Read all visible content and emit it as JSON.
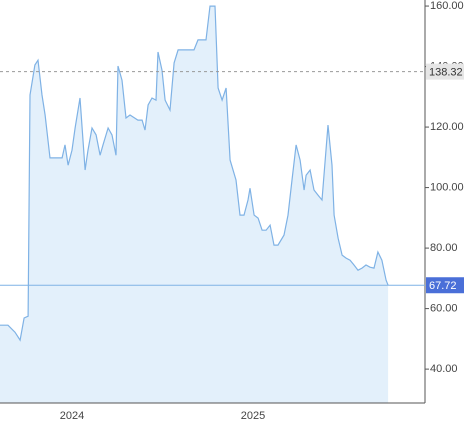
{
  "chart_data": {
    "type": "area",
    "x": [
      2023.602,
      2023.646,
      2023.685,
      2023.713,
      2023.735,
      2023.757,
      2023.768,
      2023.795,
      2023.812,
      2023.834,
      2023.851,
      2023.878,
      2023.945,
      2023.961,
      2023.978,
      2024.0,
      2024.017,
      2024.044,
      2024.072,
      2024.088,
      2024.11,
      2024.133,
      2024.155,
      2024.171,
      2024.199,
      2024.221,
      2024.243,
      2024.254,
      2024.276,
      2024.298,
      2024.32,
      2024.364,
      2024.387,
      2024.403,
      2024.42,
      2024.442,
      2024.464,
      2024.475,
      2024.497,
      2024.514,
      2024.541,
      2024.564,
      2024.586,
      2024.674,
      2024.696,
      2024.74,
      2024.762,
      2024.79,
      2024.807,
      2024.829,
      2024.851,
      2024.873,
      2024.906,
      2024.928,
      2024.95,
      2024.972,
      2024.983,
      2025.006,
      2025.028,
      2025.05,
      2025.072,
      2025.094,
      2025.116,
      2025.138,
      2025.171,
      2025.193,
      2025.215,
      2025.238,
      2025.26,
      2025.282,
      2025.293,
      2025.315,
      2025.337,
      2025.359,
      2025.381,
      2025.414,
      2025.436,
      2025.448,
      2025.47,
      2025.492,
      2025.514,
      2025.536,
      2025.558,
      2025.58,
      2025.602,
      2025.624,
      2025.646,
      2025.668,
      2025.69,
      2025.712,
      2025.735,
      2025.746
    ],
    "series": [
      {
        "color": "#7fb2e5",
        "fill": "#e3f0fb",
        "values": [
          54.5,
          54.5,
          52.2,
          49.6,
          56.9,
          57.5,
          130.6,
          140.5,
          142.1,
          130.6,
          124.0,
          109.8,
          109.8,
          114.1,
          107.4,
          112.4,
          119.7,
          129.6,
          105.8,
          112.4,
          119.7,
          117.4,
          110.7,
          114.1,
          119.7,
          117.4,
          110.7,
          140.2,
          135.5,
          123.0,
          124.0,
          122.3,
          122.3,
          119.0,
          127.3,
          129.6,
          128.9,
          144.8,
          138.8,
          128.9,
          125.6,
          141.2,
          145.5,
          145.5,
          148.8,
          148.8,
          160.0,
          160.0,
          132.9,
          128.9,
          132.9,
          109.1,
          102.5,
          90.9,
          90.9,
          95.9,
          99.8,
          90.9,
          89.9,
          85.9,
          85.9,
          87.6,
          81.0,
          81.0,
          84.3,
          90.9,
          102.5,
          114.1,
          109.1,
          99.2,
          104.1,
          105.8,
          99.2,
          97.5,
          95.9,
          120.7,
          107.4,
          90.9,
          83.3,
          77.7,
          76.7,
          76.0,
          74.4,
          72.7,
          73.4,
          74.4,
          73.7,
          73.4,
          78.7,
          76.0,
          69.4,
          67.72
        ]
      }
    ],
    "xlim": [
      2023.602,
      2025.95
    ],
    "xticks": [
      2024,
      2025
    ],
    "ylim": [
      28.8,
      162.0
    ],
    "yticks": [
      {
        "value": 40,
        "label": "40.00"
      },
      {
        "value": 60,
        "label": "60.00"
      },
      {
        "value": 80,
        "label": "80.00"
      },
      {
        "value": 100,
        "label": "100.00"
      },
      {
        "value": 120,
        "label": "120.00"
      },
      {
        "value": 140,
        "label": "140.00"
      },
      {
        "value": 160,
        "label": "160.00"
      }
    ],
    "reference_lines": [
      {
        "value": 138.32,
        "style": "dashed",
        "color": "#999999",
        "label_bg": "#e6e6e6",
        "label_color": "#333333"
      },
      {
        "value": 67.72,
        "style": "solid",
        "color": "#7fb2e5",
        "label_bg": "#4a6fd8",
        "label_color": "#ffffff"
      }
    ]
  }
}
